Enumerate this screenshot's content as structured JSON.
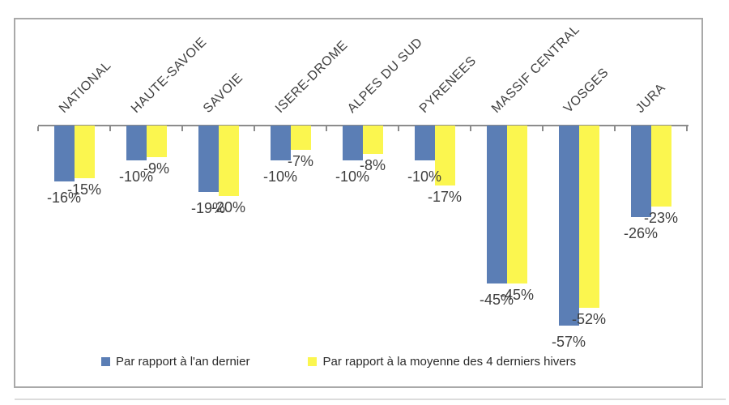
{
  "chart_data": {
    "type": "bar",
    "title": "",
    "xlabel": "",
    "ylabel": "",
    "categories": [
      "NATIONAL",
      "HAUTE-SAVOIE",
      "SAVOIE",
      "ISERE-DROME",
      "ALPES DU SUD",
      "PYRENEES",
      "MASSIF CENTRAL",
      "VOSGES",
      "JURA"
    ],
    "series": [
      {
        "name": "Par rapport à l'an dernier",
        "color": "#5b7eb5",
        "values": [
          -16,
          -10,
          -19,
          -10,
          -10,
          -10,
          -45,
          -57,
          -26
        ],
        "labels": [
          "-16%",
          "-10%",
          "-19%",
          "-10%",
          "-10%",
          "-10%",
          "-45%",
          "-57%",
          "-26%"
        ]
      },
      {
        "name": "Par rapport à la moyenne des 4 derniers hivers",
        "color": "#fbf64f",
        "values": [
          -15,
          -9,
          -20,
          -7,
          -8,
          -17,
          -45,
          -52,
          -23
        ],
        "labels": [
          "-15%",
          "-9%",
          "-20%",
          "-7%",
          "-8%",
          "-17%",
          "-45%",
          "-52%",
          "-23%"
        ]
      }
    ],
    "value_suffix": "%",
    "ylim": [
      -60,
      0
    ],
    "grid": false,
    "legend_position": "bottom",
    "category_label_rotation_deg": -45
  }
}
